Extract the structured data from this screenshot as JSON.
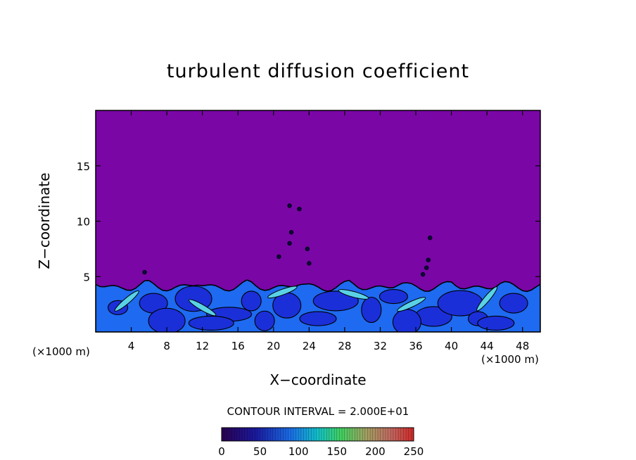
{
  "chart_data": {
    "type": "heatmap",
    "title": "turbulent diffusion coefficient",
    "xlabel": "X−coordinate",
    "ylabel": "Z−coordinate",
    "x_unit_left": "(×1000 m)",
    "x_unit_right": "(×1000 m)",
    "contour_interval_label": "CONTOUR INTERVAL = 2.000E+01",
    "xlim": [
      0,
      50
    ],
    "ylim": [
      0,
      20
    ],
    "x_ticks": [
      4,
      8,
      12,
      16,
      20,
      24,
      28,
      32,
      36,
      40,
      44,
      48
    ],
    "y_ticks": [
      5,
      10,
      15
    ],
    "colorbar": {
      "min": 0,
      "max": 250,
      "step": 20,
      "tick_labels": [
        "0",
        "50",
        "100",
        "150",
        "200",
        "250"
      ],
      "tick_values": [
        0,
        50,
        100,
        150,
        200,
        250
      ],
      "background_value_color": "#7a06a6"
    },
    "field_description_values": {
      "background_level": 0,
      "boundary_layer_top_z": 4.5,
      "typical_layer_range": [
        20,
        80
      ],
      "max_local": 140
    }
  }
}
